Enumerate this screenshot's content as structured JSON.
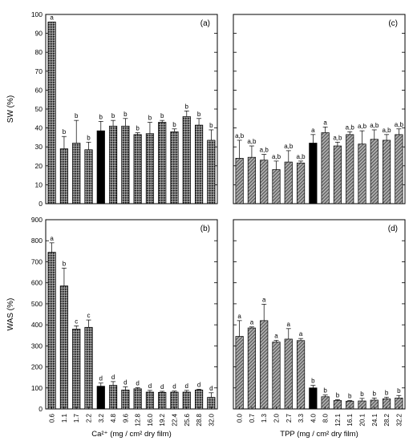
{
  "chart_data": [
    {
      "panel": "(a)",
      "type": "bar",
      "ylabel": "SW (%)",
      "xlabel": "",
      "ylim": [
        0,
        100
      ],
      "yticks": [
        0,
        10,
        20,
        30,
        40,
        50,
        60,
        70,
        80,
        90,
        100
      ],
      "categories": [
        "0.6",
        "1.1",
        "1.7",
        "2.2",
        "3.2",
        "4.8",
        "9.6",
        "12.8",
        "16.0",
        "19.2",
        "22.4",
        "25.6",
        "28.8",
        "32.0"
      ],
      "values": [
        96,
        29,
        32,
        28.5,
        38.5,
        41,
        41,
        36.5,
        37,
        43,
        38,
        46,
        41.5,
        33.5
      ],
      "errors": [
        0,
        6.5,
        12,
        4,
        5,
        3,
        4,
        1,
        6,
        1,
        1.5,
        3,
        3.5,
        5.5
      ],
      "letters": [
        "a",
        "b",
        "b",
        "b",
        "b",
        "b",
        "b",
        "b",
        "b",
        "b",
        "b",
        "b",
        "b",
        "b"
      ],
      "highlight_index": 4,
      "pattern": "dotted"
    },
    {
      "panel": "(b)",
      "type": "bar",
      "ylabel": "WAS (%)",
      "xlabel": "Ca²⁺ (mg / cm² dry film)",
      "ylim": [
        0,
        900
      ],
      "yticks": [
        0,
        100,
        200,
        300,
        400,
        500,
        600,
        700,
        800,
        900
      ],
      "categories": [
        "0.6",
        "1.1",
        "1.7",
        "2.2",
        "3.2",
        "4.8",
        "9.6",
        "12.8",
        "16.0",
        "19.2",
        "22.4",
        "25.6",
        "28.8",
        "32.0"
      ],
      "values": [
        745,
        585,
        380,
        388,
        108,
        112,
        90,
        96,
        80,
        79,
        80,
        80,
        90,
        55
      ],
      "errors": [
        45,
        85,
        15,
        35,
        15,
        18,
        15,
        5,
        8,
        5,
        5,
        8,
        4,
        22
      ],
      "letters": [
        "a",
        "b",
        "c",
        "c",
        "d",
        "d",
        "d",
        "d",
        "d",
        "d",
        "d",
        "d",
        "d",
        "d"
      ],
      "highlight_index": 4,
      "pattern": "dotted"
    },
    {
      "panel": "(c)",
      "type": "bar",
      "ylabel": "",
      "xlabel": "",
      "ylim": [
        0,
        100
      ],
      "categories": [
        "0.0",
        "0.7",
        "1.3",
        "2.0",
        "2.7",
        "3.3",
        "4.0",
        "8.0",
        "12.1",
        "16.1",
        "20.1",
        "24.1",
        "28.2",
        "32.2"
      ],
      "values": [
        24,
        24.5,
        23,
        18,
        22,
        21.5,
        32,
        37.5,
        30.5,
        36.5,
        31.5,
        34,
        33.5,
        36.5
      ],
      "errors": [
        9.5,
        6,
        3,
        4.5,
        6,
        1,
        4.5,
        3,
        2,
        1.5,
        7,
        5,
        3,
        3
      ],
      "letters": [
        "a,b",
        "a,b",
        "a,b",
        "a,b",
        "a,b",
        "a,b",
        "a",
        "a",
        "a,b",
        "a,b",
        "a,b",
        "a,b",
        "a,b",
        "a,b"
      ],
      "highlight_index": 6,
      "pattern": "hatched"
    },
    {
      "panel": "(d)",
      "type": "bar",
      "ylabel": "",
      "xlabel": "TPP (mg / cm² dry film)",
      "ylim": [
        0,
        900
      ],
      "categories": [
        "0.0",
        "0.7",
        "1.3",
        "2.0",
        "2.7",
        "3.3",
        "4.0",
        "8.0",
        "12.1",
        "16.1",
        "20.1",
        "24.1",
        "28.2",
        "32.2"
      ],
      "values": [
        345,
        385,
        420,
        318,
        332,
        325,
        100,
        58,
        40,
        37,
        38,
        42,
        48,
        52
      ],
      "errors": [
        75,
        5,
        78,
        8,
        50,
        10,
        12,
        8,
        4,
        3,
        12,
        10,
        8,
        12
      ],
      "letters": [
        "a",
        "a",
        "a",
        "a",
        "a",
        "a",
        "b",
        "b",
        "b",
        "b",
        "b",
        "b",
        "b",
        "b"
      ],
      "highlight_index": 6,
      "pattern": "hatched"
    }
  ]
}
